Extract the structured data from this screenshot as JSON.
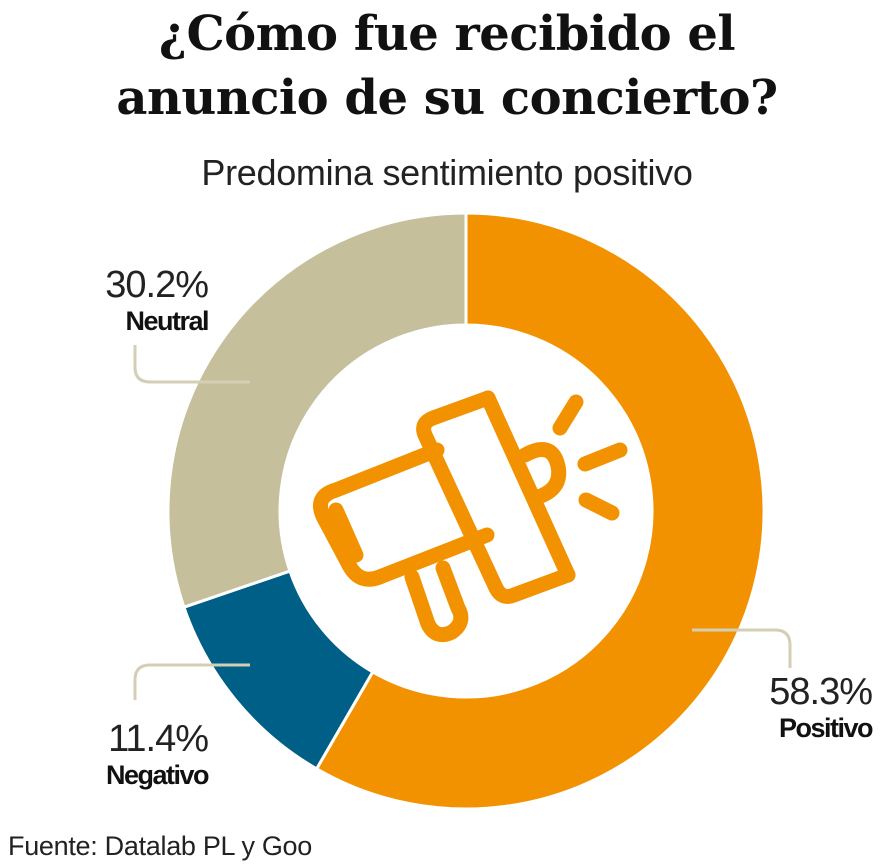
{
  "header": {
    "title_line1": "¿Cómo fue recibido el",
    "title_line2": "anuncio de su concierto?",
    "subtitle": "Predomina sentimiento positivo"
  },
  "chart_data": {
    "type": "pie",
    "variant": "donut",
    "title": "¿Cómo fue recibido el anuncio de su concierto?",
    "subtitle": "Predomina sentimiento positivo",
    "slices": [
      {
        "label": "Positivo",
        "value": 58.3,
        "value_label": "58.3%",
        "color": "#F39200"
      },
      {
        "label": "Negativo",
        "value": 11.4,
        "value_label": "11.4%",
        "color": "#005F86"
      },
      {
        "label": "Neutral",
        "value": 30.2,
        "value_label": "30.2%",
        "color": "#C6BF9C"
      }
    ],
    "center_icon": "megaphone-icon"
  },
  "colors": {
    "icon": "#F39200",
    "leader": "#D4CFB4"
  },
  "footer": {
    "source": "Fuente: Datalab PL y  Goo"
  }
}
